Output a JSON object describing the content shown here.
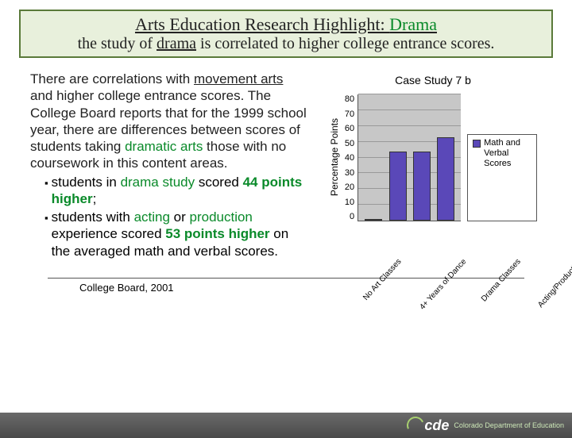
{
  "header": {
    "title_prefix": "Arts Education Research Highlight: ",
    "title_drama": "Drama",
    "sub_pre": "the study of ",
    "sub_mid": "drama",
    "sub_post": " is is correlated to higher college entrance scores."
  },
  "body": {
    "p1a": "There are correlations with ",
    "p1b": "movement arts",
    "p1c": " and higher college entrance scores. The College Board reports that for the 1999 school year, there are differences between scores of students taking ",
    "p1d": "dramatic arts",
    "p1e": " those with no coursework in this content areas.",
    "b1a": "students in ",
    "b1b": "drama study",
    "b1c": " scored ",
    "b1d": "44 points higher",
    "b1e": ";",
    "b2a": "students with ",
    "b2b": "acting",
    "b2c": " or ",
    "b2d": "production",
    "b2e": " experience scored ",
    "b2f": "53 points higher",
    "b2g": "  on the averaged math and verbal scores."
  },
  "source": "College Board, 2001",
  "chart": {
    "title": "Case Study 7 b",
    "ylabel": "Percentage Points",
    "ylim": [
      0,
      80
    ],
    "ytick_step": 10,
    "yticks": [
      "80",
      "70",
      "60",
      "50",
      "40",
      "30",
      "20",
      "10",
      "0"
    ],
    "categories": [
      "No Art Classes",
      "4+ Years of Dance",
      "Drama Classes",
      "Acting/Production"
    ],
    "values": [
      0,
      44,
      44,
      53
    ],
    "bar_color": "#5a48b8",
    "plot_bg": "#c7c7c7",
    "grid_color": "#999999",
    "legend": "Math and Verbal Scores"
  },
  "footer": {
    "mark": "cde",
    "org": "Colorado Department of Education"
  }
}
